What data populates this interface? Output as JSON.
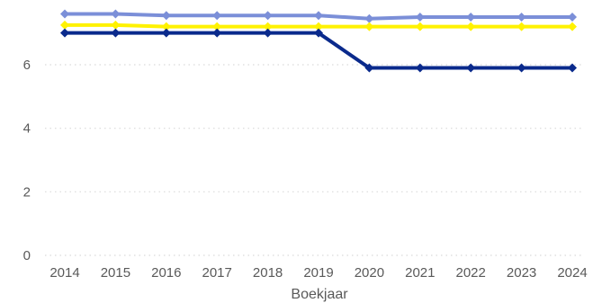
{
  "chart_data": {
    "type": "line",
    "xlabel": "Boekjaar",
    "ylabel": "",
    "ylim": [
      0,
      7.6
    ],
    "y_ticks": [
      0,
      2,
      4,
      6
    ],
    "grid": true,
    "categories": [
      "2014",
      "2015",
      "2016",
      "2017",
      "2018",
      "2019",
      "2020",
      "2021",
      "2022",
      "2023",
      "2024"
    ],
    "series": [
      {
        "color": "#7B8FD8",
        "marker": "diamond",
        "values": [
          7.6,
          7.6,
          7.55,
          7.55,
          7.55,
          7.55,
          7.45,
          7.5,
          7.5,
          7.5,
          7.5
        ]
      },
      {
        "color": "#FFF200",
        "marker": "diamond",
        "values": [
          7.25,
          7.25,
          7.2,
          7.2,
          7.2,
          7.2,
          7.2,
          7.2,
          7.2,
          7.2,
          7.2
        ]
      },
      {
        "color": "#0A2A8C",
        "marker": "diamond",
        "values": [
          7.0,
          7.0,
          7.0,
          7.0,
          7.0,
          7.0,
          5.9,
          5.9,
          5.9,
          5.9,
          5.9
        ]
      }
    ]
  }
}
